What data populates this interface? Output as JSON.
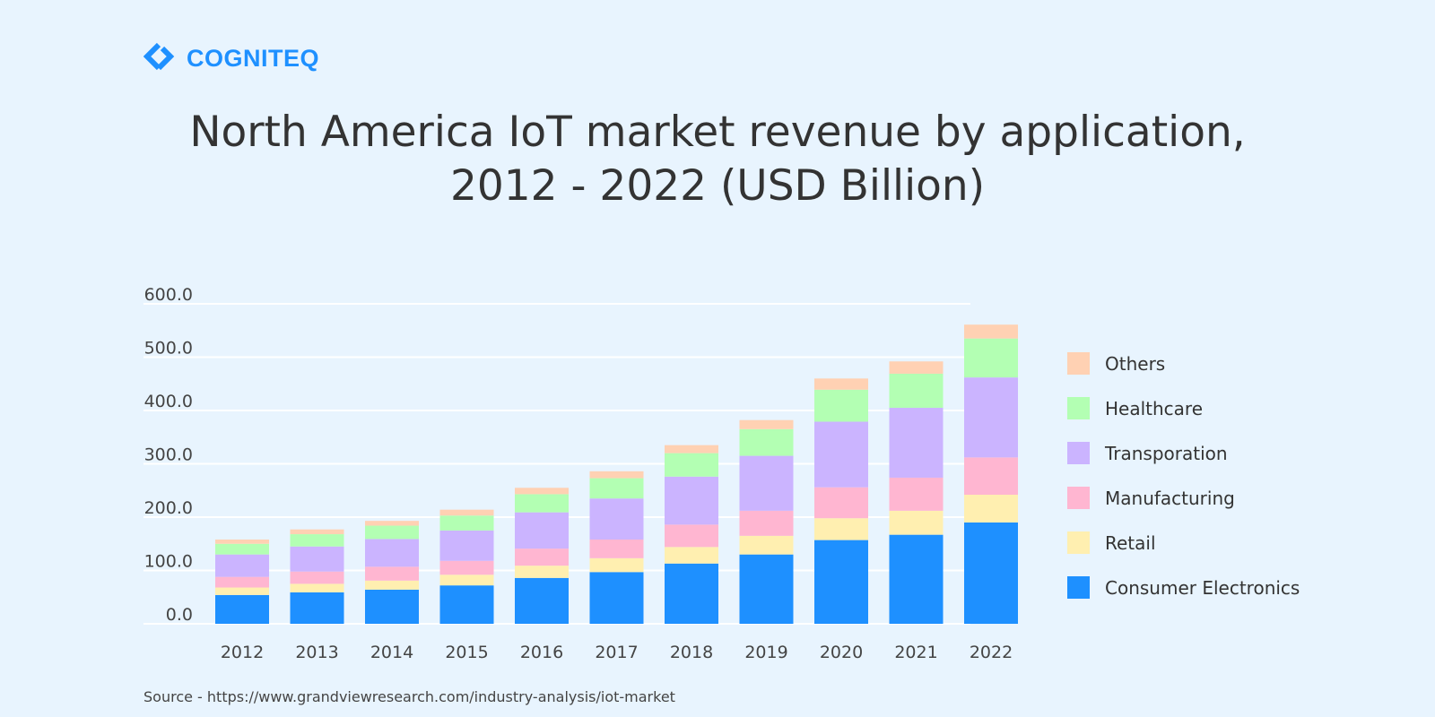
{
  "brand": {
    "name": "COGNITEQ",
    "color": "#1e90ff"
  },
  "title": {
    "line1": "North America IoT market revenue by application,",
    "line2": "2012 - 2022 (USD Billion)"
  },
  "chart_data": {
    "type": "bar",
    "stacked": true,
    "title": "North America IoT market revenue by application, 2012 - 2022 (USD Billion)",
    "xlabel": "",
    "ylabel": "",
    "ylim": [
      0,
      600
    ],
    "y_ticks": [
      "0.0",
      "100.0",
      "200.0",
      "300.0",
      "400.0",
      "500.0",
      "600.0"
    ],
    "grid": true,
    "legend_position": "right",
    "categories": [
      "2012",
      "2013",
      "2014",
      "2015",
      "2016",
      "2017",
      "2018",
      "2019",
      "2020",
      "2021",
      "2022"
    ],
    "series": [
      {
        "name": "Consumer Electronics",
        "color": "#1e90ff",
        "values": [
          54,
          59,
          64,
          72,
          86,
          97,
          113,
          130,
          157,
          167,
          190
        ]
      },
      {
        "name": "Retail",
        "color": "#ffefb0",
        "values": [
          14,
          16,
          17,
          20,
          23,
          26,
          31,
          35,
          41,
          45,
          52
        ]
      },
      {
        "name": "Manufacturing",
        "color": "#ffb6d1",
        "values": [
          20,
          23,
          26,
          26,
          32,
          35,
          42,
          47,
          58,
          62,
          70
        ]
      },
      {
        "name": "Transporation",
        "color": "#cbb4ff",
        "values": [
          42,
          47,
          52,
          57,
          68,
          77,
          90,
          103,
          123,
          131,
          150
        ]
      },
      {
        "name": "Healthcare",
        "color": "#b3ffb3",
        "values": [
          20,
          23,
          25,
          28,
          34,
          38,
          44,
          50,
          60,
          64,
          73
        ]
      },
      {
        "name": "Others",
        "color": "#ffd1b3",
        "values": [
          8,
          9,
          9,
          11,
          12,
          13,
          15,
          17,
          21,
          23,
          26
        ]
      }
    ],
    "legend_order": [
      "Others",
      "Healthcare",
      "Transporation",
      "Manufacturing",
      "Retail",
      "Consumer Electronics"
    ]
  },
  "source": "Source - https://www.grandviewresearch.com/industry-analysis/iot-market"
}
